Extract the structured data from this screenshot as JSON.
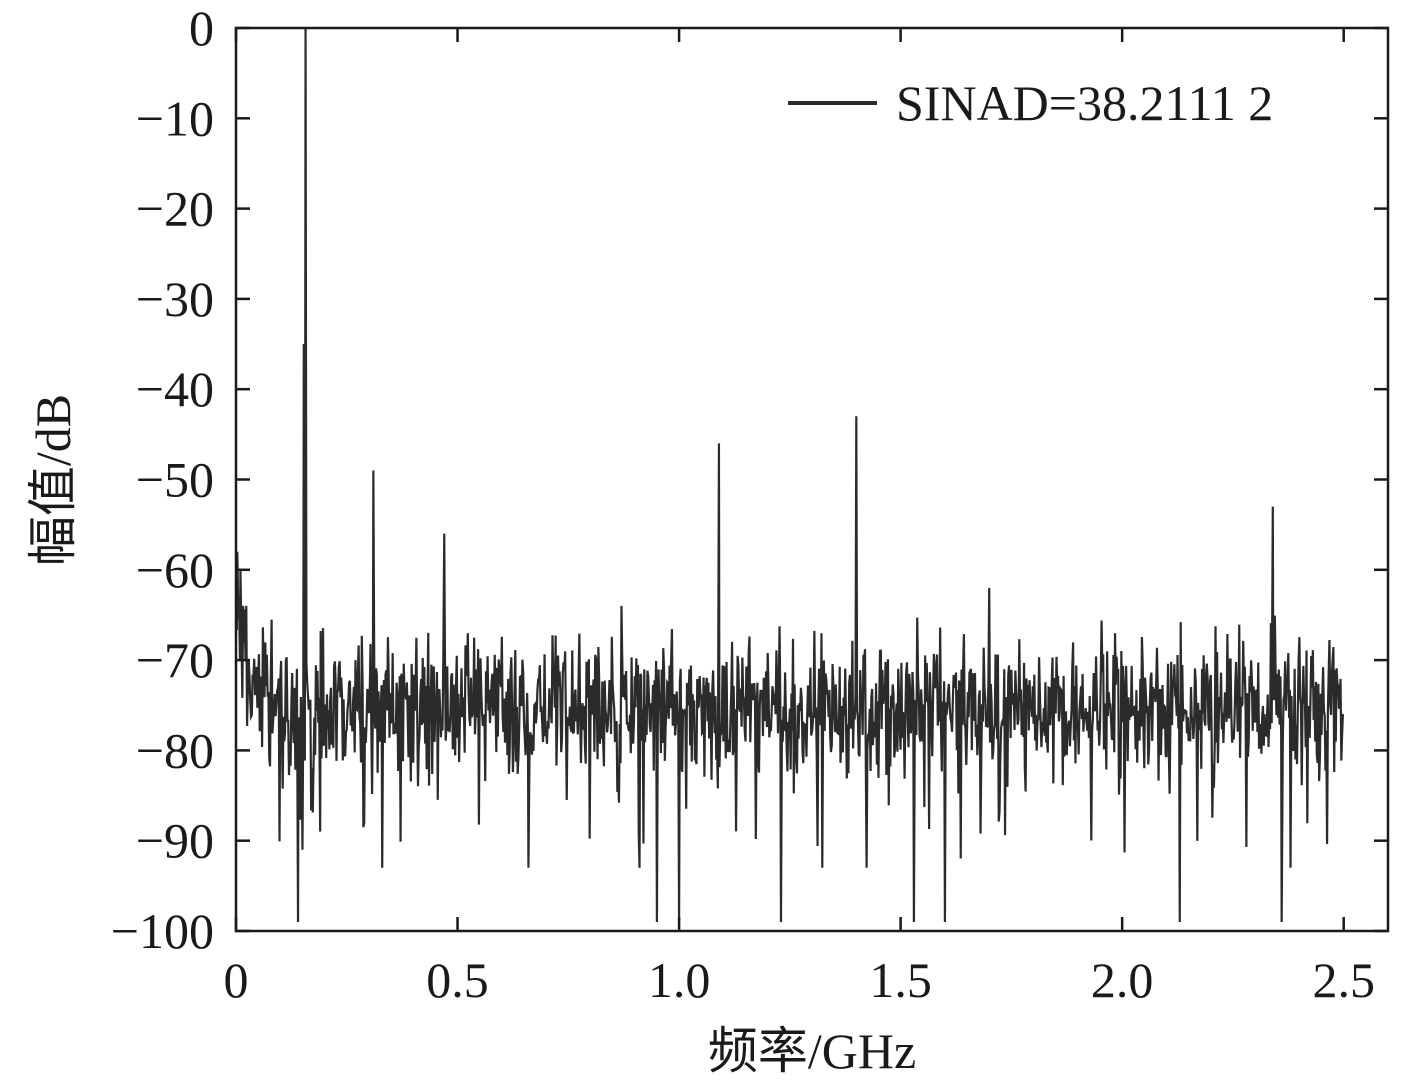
{
  "chart_data": {
    "type": "line",
    "xlabel": "频率/GHz",
    "ylabel": "幅值/dB",
    "xlim": [
      0,
      2.6
    ],
    "ylim": [
      -100,
      0
    ],
    "xticks": [
      0,
      0.5,
      1.0,
      1.5,
      2.0,
      2.5
    ],
    "xtick_labels": [
      "0",
      "0.5",
      "1.0",
      "1.5",
      "2.0",
      "2.5"
    ],
    "yticks": [
      0,
      -10,
      -20,
      -30,
      -40,
      -50,
      -60,
      -70,
      -80,
      -90,
      -100
    ],
    "ytick_labels": [
      "0",
      "−10",
      "−20",
      "−30",
      "−40",
      "−50",
      "−60",
      "−70",
      "−80",
      "−90",
      "−100"
    ],
    "grid": false,
    "legend_position": "top-right",
    "series": [
      {
        "name": "SINAD=38.2111 2",
        "color": "#2b2b2b",
        "noise_floor_db": -75,
        "x_start": 0,
        "x_end": 2.5,
        "peaks": [
          {
            "x": 0.003,
            "y": -58
          },
          {
            "x": 0.01,
            "y": -60
          },
          {
            "x": 0.14,
            "y": -99
          },
          {
            "x": 0.15,
            "y": -91
          },
          {
            "x": 0.153,
            "y": -35
          },
          {
            "x": 0.157,
            "y": 0
          },
          {
            "x": 0.19,
            "y": -89
          },
          {
            "x": 0.31,
            "y": -49
          },
          {
            "x": 0.33,
            "y": -93
          },
          {
            "x": 0.47,
            "y": -56
          },
          {
            "x": 0.66,
            "y": -93
          },
          {
            "x": 0.87,
            "y": -64
          },
          {
            "x": 0.95,
            "y": -99
          },
          {
            "x": 1.0,
            "y": -99
          },
          {
            "x": 1.09,
            "y": -46
          },
          {
            "x": 1.23,
            "y": -99
          },
          {
            "x": 1.4,
            "y": -43
          },
          {
            "x": 1.53,
            "y": -99
          },
          {
            "x": 1.6,
            "y": -99
          },
          {
            "x": 1.7,
            "y": -62
          },
          {
            "x": 2.13,
            "y": -99
          },
          {
            "x": 2.34,
            "y": -53
          },
          {
            "x": 2.36,
            "y": -99
          },
          {
            "x": 2.38,
            "y": -93
          }
        ]
      }
    ]
  }
}
